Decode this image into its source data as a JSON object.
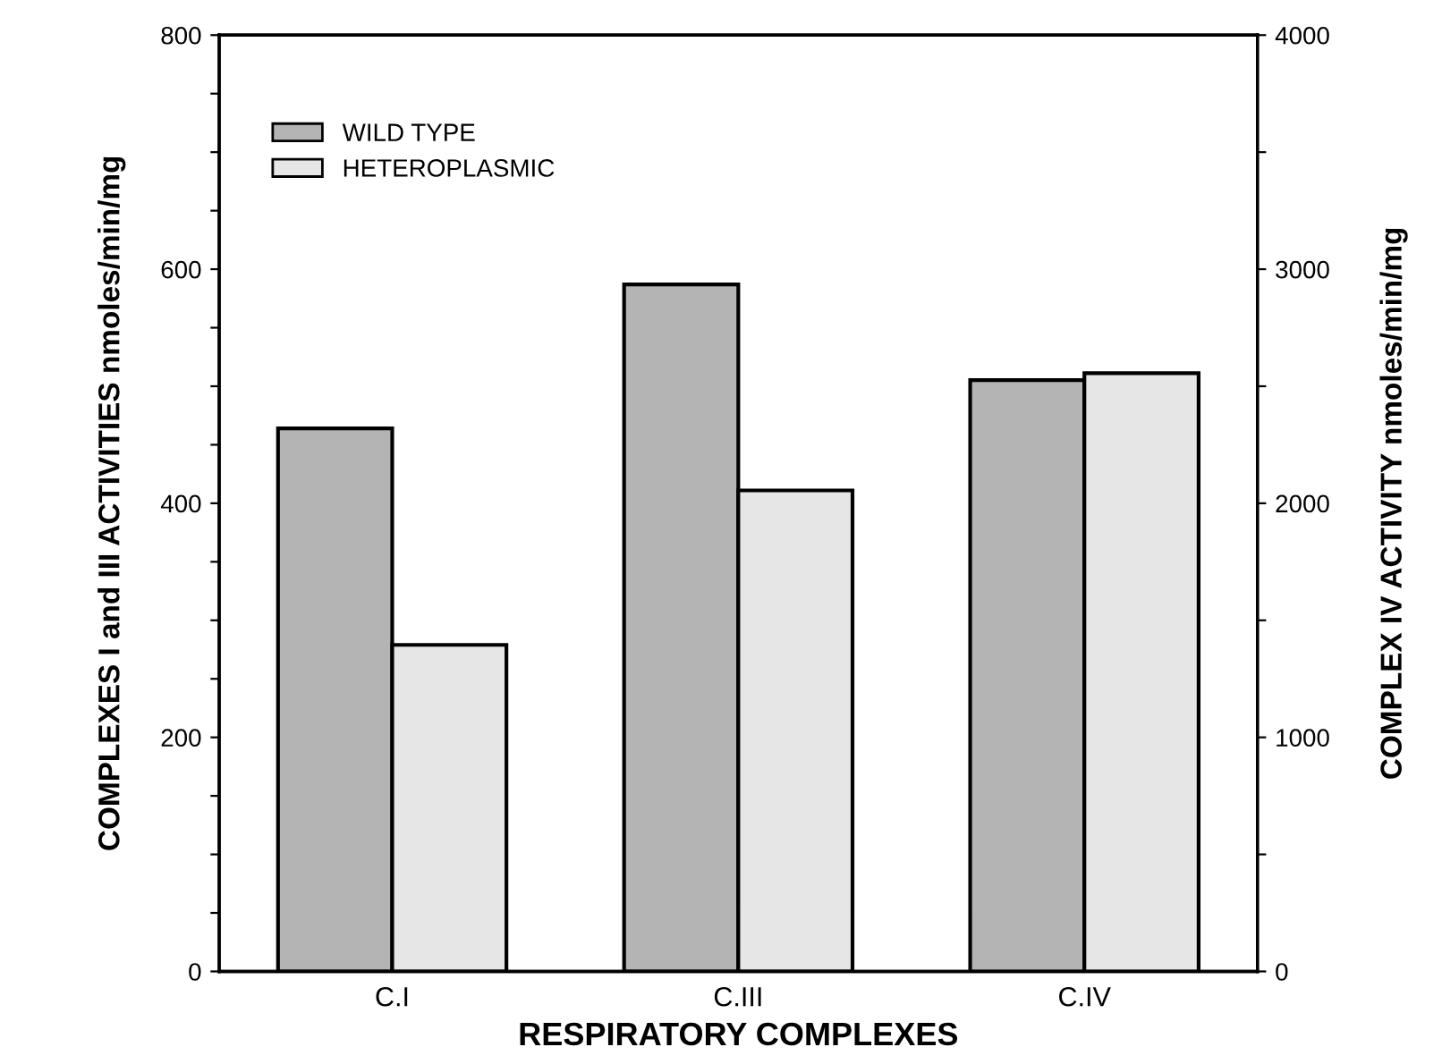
{
  "chart_data": {
    "type": "bar",
    "xlabel": "RESPIRATORY COMPLEXES",
    "ylabel": "COMPLEXES I and III ACTIVITIES nmoles/min/mg",
    "y2label": "COMPLEX IV ACTIVITY nmoles/min/mg",
    "categories": [
      "C.I",
      "C.III",
      "C.IV"
    ],
    "series": [
      {
        "name": "WILD TYPE",
        "color": "#b4b4b4",
        "values": [
          464,
          587,
          null
        ]
      },
      {
        "name": "HETEROPLASMIC",
        "color": "#e6e6e6",
        "values": [
          279,
          411,
          null
        ]
      },
      {
        "color": "#b4b4b4",
        "axis": "y2",
        "values": [
          null,
          null,
          2526
        ]
      },
      {
        "color": "#e6e6e6",
        "axis": "y2",
        "values": [
          null,
          null,
          2556
        ]
      }
    ],
    "ylim": [
      0,
      800
    ],
    "yticks": [
      0,
      {
        "value": 50,
        "label": null
      },
      {
        "value": 100,
        "label": null
      },
      {
        "value": 150,
        "label": null
      },
      200,
      {
        "value": 250,
        "label": null
      },
      {
        "value": 300,
        "label": null
      },
      {
        "value": 350,
        "label": null
      },
      400,
      {
        "value": 450,
        "label": null
      },
      {
        "value": 500,
        "label": null
      },
      {
        "value": 550,
        "label": null
      },
      600,
      {
        "value": 650,
        "label": null
      },
      {
        "value": 700,
        "label": null
      },
      {
        "value": 750,
        "label": null
      },
      800
    ],
    "y2lim": [
      0,
      4000
    ],
    "y2ticks": [
      0,
      {
        "value": 500,
        "label": null
      },
      1000,
      {
        "value": 1500,
        "label": null
      },
      2000,
      {
        "value": 2500,
        "label": null
      },
      3000,
      {
        "value": 3500,
        "label": null
      },
      4000
    ],
    "grid": false,
    "legend": "top left"
  }
}
